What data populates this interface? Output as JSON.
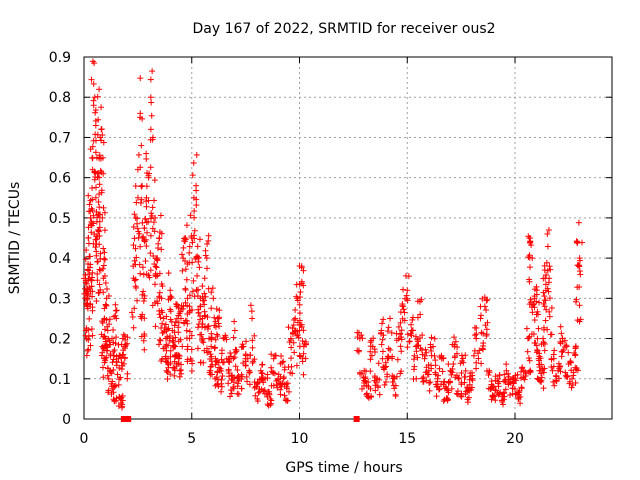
{
  "chart_data": {
    "type": "scatter",
    "title": "Day 167 of 2022, SRMTID for receiver ous2",
    "xlabel": "GPS time / hours",
    "ylabel": "SRMTID / TECUs",
    "xlim": [
      0,
      24.5
    ],
    "ylim": [
      0,
      0.9
    ],
    "xticks": [
      0,
      5,
      10,
      15,
      20
    ],
    "yticks": [
      0,
      0.1,
      0.2,
      0.3,
      0.4,
      0.5,
      0.6,
      0.7,
      0.8,
      0.9
    ],
    "grid": true,
    "legend": "none",
    "marker": "+",
    "color": "#ff0000",
    "series": [
      {
        "name": "SRMTID",
        "points": [
          [
            0.05,
            0.3
          ],
          [
            0.1,
            0.42
          ],
          [
            0.15,
            0.28
          ],
          [
            0.2,
            0.45
          ],
          [
            0.25,
            0.36
          ],
          [
            0.3,
            0.5
          ],
          [
            0.35,
            0.33
          ],
          [
            0.4,
            0.62
          ],
          [
            0.45,
            0.78
          ],
          [
            0.5,
            0.8
          ],
          [
            0.55,
            0.55
          ],
          [
            0.6,
            0.65
          ],
          [
            0.65,
            0.47
          ],
          [
            0.7,
            0.6
          ],
          [
            0.75,
            0.7
          ],
          [
            0.8,
            0.72
          ],
          [
            0.85,
            0.5
          ],
          [
            0.9,
            0.35
          ],
          [
            0.95,
            0.25
          ],
          [
            1.0,
            0.18
          ],
          [
            1.05,
            0.3
          ],
          [
            1.1,
            0.22
          ],
          [
            1.2,
            0.12
          ],
          [
            1.3,
            0.2
          ],
          [
            1.4,
            0.08
          ],
          [
            1.5,
            0.25
          ],
          [
            1.6,
            0.15
          ],
          [
            1.7,
            0.05
          ],
          [
            1.8,
            0.2
          ],
          [
            1.9,
            0.18
          ],
          [
            2.3,
            0.35
          ],
          [
            2.4,
            0.5
          ],
          [
            2.5,
            0.62
          ],
          [
            2.6,
            0.75
          ],
          [
            2.7,
            0.45
          ],
          [
            2.8,
            0.3
          ],
          [
            2.9,
            0.55
          ],
          [
            3.0,
            0.6
          ],
          [
            3.1,
            0.8
          ],
          [
            3.2,
            0.7
          ],
          [
            3.3,
            0.5
          ],
          [
            3.4,
            0.4
          ],
          [
            3.5,
            0.45
          ],
          [
            3.6,
            0.3
          ],
          [
            3.7,
            0.25
          ],
          [
            3.8,
            0.2
          ],
          [
            3.9,
            0.15
          ],
          [
            4.0,
            0.32
          ],
          [
            4.1,
            0.22
          ],
          [
            4.2,
            0.18
          ],
          [
            4.3,
            0.28
          ],
          [
            4.4,
            0.15
          ],
          [
            4.5,
            0.25
          ],
          [
            4.6,
            0.4
          ],
          [
            4.7,
            0.45
          ],
          [
            4.8,
            0.3
          ],
          [
            4.9,
            0.2
          ],
          [
            5.0,
            0.45
          ],
          [
            5.1,
            0.55
          ],
          [
            5.2,
            0.58
          ],
          [
            5.3,
            0.4
          ],
          [
            5.4,
            0.3
          ],
          [
            5.5,
            0.25
          ],
          [
            5.6,
            0.35
          ],
          [
            5.7,
            0.4
          ],
          [
            5.8,
            0.2
          ],
          [
            5.9,
            0.18
          ],
          [
            6.0,
            0.3
          ],
          [
            6.1,
            0.15
          ],
          [
            6.2,
            0.25
          ],
          [
            6.3,
            0.12
          ],
          [
            6.5,
            0.2
          ],
          [
            6.7,
            0.15
          ],
          [
            6.9,
            0.1
          ],
          [
            7.0,
            0.22
          ],
          [
            7.2,
            0.1
          ],
          [
            7.4,
            0.18
          ],
          [
            7.6,
            0.15
          ],
          [
            7.8,
            0.25
          ],
          [
            8.0,
            0.08
          ],
          [
            8.2,
            0.12
          ],
          [
            8.4,
            0.1
          ],
          [
            8.6,
            0.06
          ],
          [
            8.8,
            0.15
          ],
          [
            9.0,
            0.1
          ],
          [
            9.2,
            0.14
          ],
          [
            9.4,
            0.08
          ],
          [
            9.6,
            0.2
          ],
          [
            9.8,
            0.25
          ],
          [
            9.9,
            0.3
          ],
          [
            10.0,
            0.22
          ],
          [
            10.1,
            0.38
          ],
          [
            10.2,
            0.18
          ],
          [
            12.8,
            0.2
          ],
          [
            13.0,
            0.12
          ],
          [
            13.2,
            0.08
          ],
          [
            13.4,
            0.18
          ],
          [
            13.6,
            0.1
          ],
          [
            13.8,
            0.22
          ],
          [
            14.0,
            0.14
          ],
          [
            14.2,
            0.25
          ],
          [
            14.4,
            0.1
          ],
          [
            14.6,
            0.2
          ],
          [
            14.8,
            0.28
          ],
          [
            15.0,
            0.32
          ],
          [
            15.2,
            0.22
          ],
          [
            15.4,
            0.18
          ],
          [
            15.6,
            0.26
          ],
          [
            15.8,
            0.15
          ],
          [
            16.0,
            0.12
          ],
          [
            16.2,
            0.18
          ],
          [
            16.4,
            0.1
          ],
          [
            16.6,
            0.15
          ],
          [
            16.8,
            0.08
          ],
          [
            17.0,
            0.12
          ],
          [
            17.2,
            0.18
          ],
          [
            17.4,
            0.1
          ],
          [
            17.6,
            0.14
          ],
          [
            17.8,
            0.07
          ],
          [
            18.0,
            0.1
          ],
          [
            18.2,
            0.2
          ],
          [
            18.4,
            0.25
          ],
          [
            18.6,
            0.28
          ],
          [
            18.8,
            0.12
          ],
          [
            19.0,
            0.08
          ],
          [
            19.2,
            0.1
          ],
          [
            19.4,
            0.06
          ],
          [
            19.6,
            0.12
          ],
          [
            19.8,
            0.09
          ],
          [
            20.0,
            0.1
          ],
          [
            20.2,
            0.07
          ],
          [
            20.4,
            0.12
          ],
          [
            20.6,
            0.2
          ],
          [
            20.7,
            0.45
          ],
          [
            20.8,
            0.4
          ],
          [
            20.9,
            0.3
          ],
          [
            21.0,
            0.26
          ],
          [
            21.1,
            0.15
          ],
          [
            21.2,
            0.12
          ],
          [
            21.3,
            0.2
          ],
          [
            21.4,
            0.35
          ],
          [
            21.5,
            0.46
          ],
          [
            21.6,
            0.38
          ],
          [
            21.8,
            0.15
          ],
          [
            22.0,
            0.12
          ],
          [
            22.2,
            0.2
          ],
          [
            22.4,
            0.18
          ],
          [
            22.6,
            0.14
          ],
          [
            22.8,
            0.16
          ],
          [
            22.9,
            0.44
          ],
          [
            23.0,
            0.4
          ]
        ],
        "zero_markers": [
          1.85,
          2.05,
          12.65
        ]
      }
    ]
  }
}
